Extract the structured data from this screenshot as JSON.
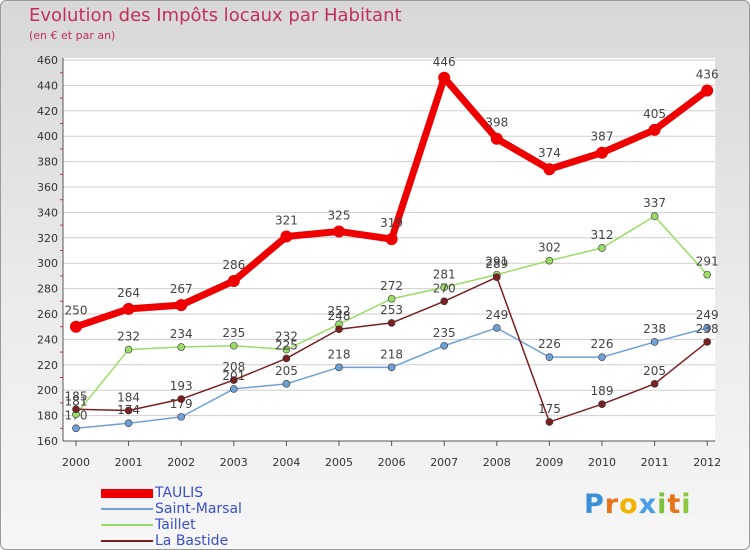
{
  "chart_data": {
    "type": "line",
    "title": "Evolution des Impôts locaux par Habitant",
    "subtitle": "(en € et par an)",
    "xlabel": "",
    "ylabel": "",
    "x": [
      "2000",
      "2001",
      "2002",
      "2003",
      "2004",
      "2005",
      "2006",
      "2007",
      "2008",
      "2009",
      "2010",
      "2011",
      "2012"
    ],
    "ylim": [
      160,
      460
    ],
    "yticks": [
      "160",
      "180",
      "200",
      "220",
      "240",
      "260",
      "280",
      "300",
      "320",
      "340",
      "360",
      "380",
      "400",
      "420",
      "440",
      "460"
    ],
    "grid": "horizontal",
    "legend_position": "bottom-left",
    "series": [
      {
        "name": "TAULIS",
        "color": "#ee0000",
        "values": [
          250,
          264,
          267,
          286,
          321,
          325,
          319,
          446,
          398,
          374,
          387,
          405,
          436
        ]
      },
      {
        "name": "Saint-Marsal",
        "color": "#6fa0d6",
        "values": [
          170,
          174,
          179,
          201,
          205,
          218,
          218,
          235,
          249,
          226,
          226,
          238,
          249
        ]
      },
      {
        "name": "Taillet",
        "color": "#99dd66",
        "values": [
          181,
          232,
          234,
          235,
          232,
          252,
          272,
          281,
          291,
          302,
          312,
          337,
          291
        ]
      },
      {
        "name": "La Bastide",
        "color": "#7a2020",
        "values": [
          185,
          184,
          193,
          208,
          225,
          248,
          253,
          270,
          289,
          175,
          189,
          205,
          238
        ]
      }
    ]
  },
  "logo": {
    "letters": [
      {
        "ch": "P",
        "color": "#3a8fd8"
      },
      {
        "ch": "r",
        "color": "#e8741a"
      },
      {
        "ch": "o",
        "color": "#f0b400"
      },
      {
        "ch": "x",
        "color": "#4a9ee8"
      },
      {
        "ch": "i",
        "color": "#79c23a"
      },
      {
        "ch": "t",
        "color": "#e8741a"
      },
      {
        "ch": "i",
        "color": "#8dc63f"
      }
    ]
  }
}
